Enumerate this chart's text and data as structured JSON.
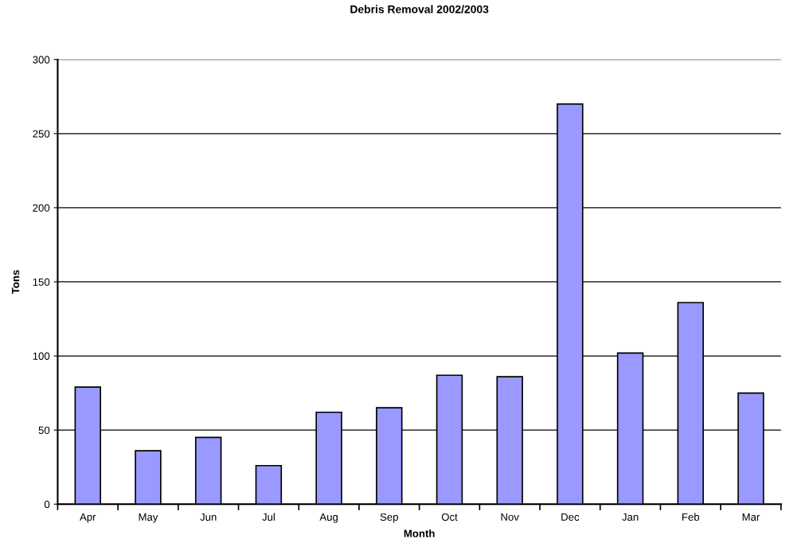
{
  "chart_data": {
    "type": "bar",
    "title": "Debris Removal 2002/2003",
    "xlabel": "Month",
    "ylabel": "Tons",
    "categories": [
      "Apr",
      "May",
      "Jun",
      "Jul",
      "Aug",
      "Sep",
      "Oct",
      "Nov",
      "Dec",
      "Jan",
      "Feb",
      "Mar"
    ],
    "values": [
      79,
      36,
      45,
      26,
      62,
      65,
      87,
      86,
      270,
      102,
      136,
      75
    ],
    "color": "#9999ff",
    "ylim": [
      0,
      300
    ],
    "yticks": [
      0,
      50,
      100,
      150,
      200,
      250,
      300
    ],
    "grid": "y",
    "legend": false
  }
}
